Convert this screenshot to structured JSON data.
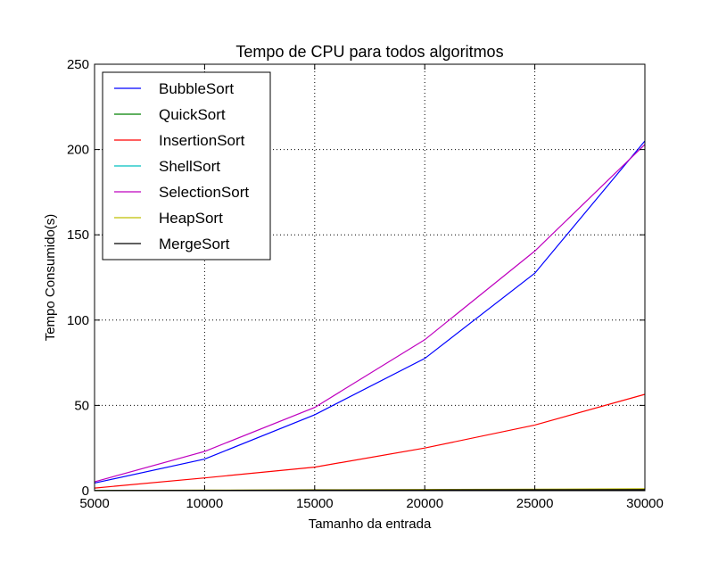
{
  "chart_data": {
    "type": "line",
    "title": "Tempo de CPU para todos algoritmos",
    "xlabel": "Tamanho da entrada",
    "ylabel": "Tempo Consumido(s)",
    "xlim": [
      5000,
      30000
    ],
    "ylim": [
      0,
      250
    ],
    "xticks": [
      5000,
      10000,
      15000,
      20000,
      25000,
      30000
    ],
    "yticks": [
      0,
      50,
      100,
      150,
      200,
      250
    ],
    "grid": true,
    "legend_position": "top-left",
    "x": [
      5000,
      10000,
      15000,
      20000,
      25000,
      30000
    ],
    "series": [
      {
        "name": "BubbleSort",
        "color": "#0000ff",
        "values": [
          4.5,
          18.5,
          44.5,
          77.5,
          127.5,
          205.0
        ]
      },
      {
        "name": "QuickSort",
        "color": "#008000",
        "values": [
          0.05,
          0.1,
          0.15,
          0.2,
          0.25,
          0.3
        ]
      },
      {
        "name": "InsertionSort",
        "color": "#ff0000",
        "values": [
          1.5,
          7.5,
          13.8,
          25.0,
          38.5,
          56.5
        ]
      },
      {
        "name": "ShellSort",
        "color": "#00bfbf",
        "values": [
          0.05,
          0.1,
          0.15,
          0.2,
          0.25,
          0.3
        ]
      },
      {
        "name": "SelectionSort",
        "color": "#bf00bf",
        "values": [
          5.2,
          23.0,
          48.8,
          88.5,
          140.5,
          203.0
        ]
      },
      {
        "name": "HeapSort",
        "color": "#bfbf00",
        "values": [
          0.1,
          0.3,
          0.5,
          0.7,
          0.9,
          1.1
        ]
      },
      {
        "name": "MergeSort",
        "color": "#000000",
        "values": [
          0.1,
          0.2,
          0.3,
          0.4,
          0.5,
          0.6
        ]
      }
    ]
  }
}
